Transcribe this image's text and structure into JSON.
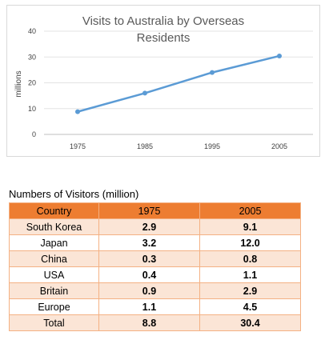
{
  "chart_data": {
    "type": "line",
    "title_lines": [
      "Visits to Australia by Overseas",
      "Residents"
    ],
    "ylabel": "millions",
    "xlabel": "",
    "categories": [
      "1975",
      "1985",
      "1995",
      "2005"
    ],
    "series": [
      {
        "values": [
          8.8,
          16,
          24,
          30.4
        ]
      }
    ],
    "ylim": [
      0,
      40
    ],
    "yticks": [
      0,
      10,
      20,
      30,
      40
    ],
    "grid": true,
    "legend": "none",
    "color": "#5b9bd5"
  },
  "table": {
    "title": "Numbers of Visitors (million)",
    "headers": [
      "Country",
      "1975",
      "2005"
    ],
    "rows": [
      [
        "South Korea",
        "2.9",
        "9.1"
      ],
      [
        "Japan",
        "3.2",
        "12.0"
      ],
      [
        "China",
        "0.3",
        "0.8"
      ],
      [
        "USA",
        "0.4",
        "1.1"
      ],
      [
        "Britain",
        "0.9",
        "2.9"
      ],
      [
        "Europe",
        "1.1",
        "4.5"
      ],
      [
        "Total",
        "8.8",
        "30.4"
      ]
    ]
  }
}
